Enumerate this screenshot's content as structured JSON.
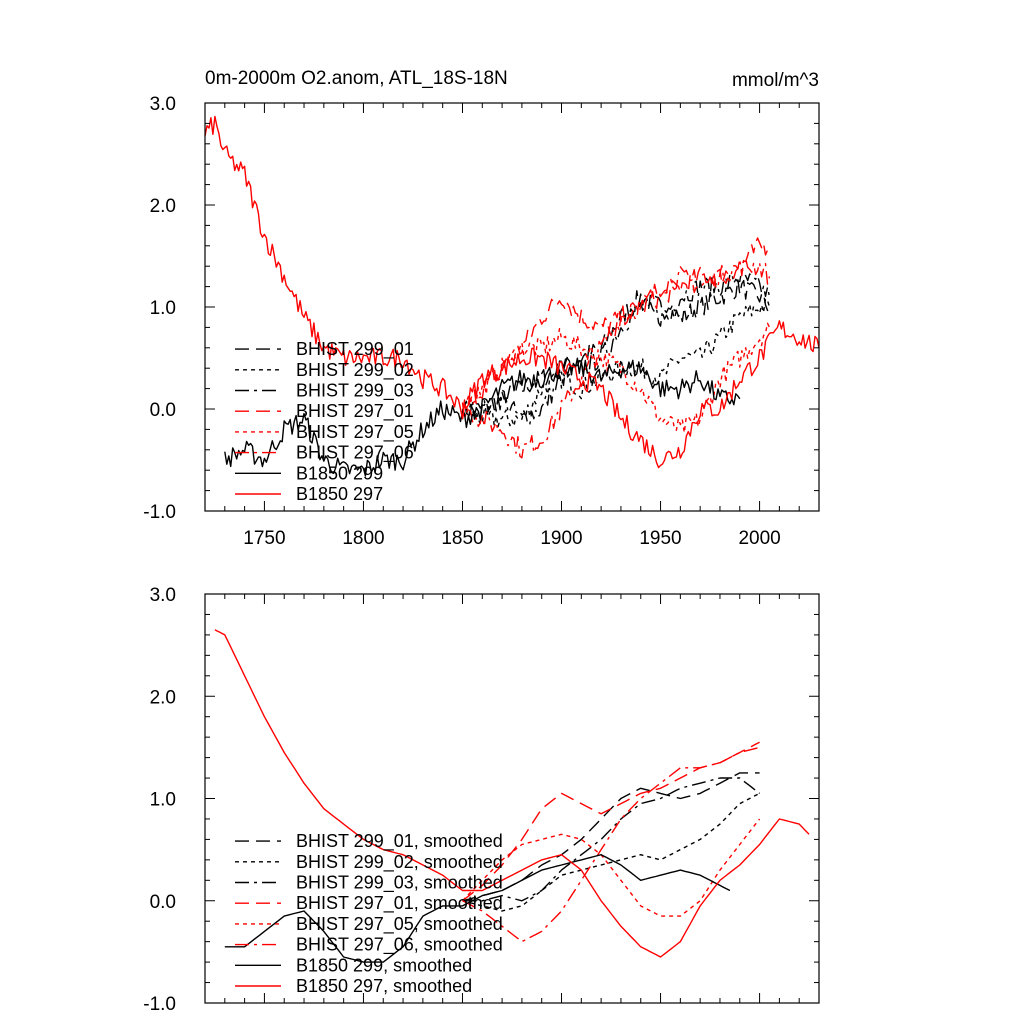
{
  "figure": {
    "title_left": "0m-2000m O2.anom, ATL_18S-18N",
    "title_right": "mmol/m^3"
  },
  "legend_styles": {
    "BHIST 299_01": {
      "color": "#000000",
      "dash": "14,7"
    },
    "BHIST 299_02": {
      "color": "#000000",
      "dash": "4,4"
    },
    "BHIST 299_03": {
      "color": "#000000",
      "dash": "14,5,3,5"
    },
    "BHIST 297_01": {
      "color": "#ff0000",
      "dash": "14,7"
    },
    "BHIST 297_05": {
      "color": "#ff0000",
      "dash": "4,4"
    },
    "BHIST 297_06": {
      "color": "#ff0000",
      "dash": "14,5,3,5"
    },
    "B1850 299": {
      "color": "#000000",
      "dash": ""
    },
    "B1850 297": {
      "color": "#ff0000",
      "dash": ""
    }
  },
  "chart_data": [
    {
      "type": "line",
      "panel": "top",
      "xlim": [
        1720,
        2030
      ],
      "ylim": [
        -1.0,
        3.0
      ],
      "xticks": [
        "1750",
        "1800",
        "1850",
        "1900",
        "1950",
        "2000"
      ],
      "yticks": [
        "-1.0",
        "0.0",
        "1.0",
        "2.0",
        "3.0"
      ],
      "legend_position": "lower-left",
      "noise": 0.1,
      "series": [
        {
          "name": "BHIST 299_01",
          "style": "BHIST 299_01",
          "x": [
            1850,
            1860,
            1870,
            1880,
            1890,
            1900,
            1910,
            1920,
            1930,
            1940,
            1950,
            1960,
            1970,
            1980,
            1990,
            2000,
            2005
          ],
          "y": [
            0.0,
            0.0,
            0.1,
            0.2,
            0.3,
            0.4,
            0.5,
            0.6,
            0.9,
            1.1,
            1.0,
            0.9,
            1.0,
            1.1,
            1.2,
            1.1,
            1.0
          ]
        },
        {
          "name": "BHIST 299_02",
          "style": "BHIST 299_02",
          "x": [
            1850,
            1860,
            1870,
            1880,
            1890,
            1900,
            1910,
            1920,
            1930,
            1940,
            1950,
            1960,
            1970,
            1980,
            1990,
            2000,
            2005
          ],
          "y": [
            0.0,
            -0.1,
            -0.1,
            -0.1,
            0.2,
            0.3,
            0.2,
            0.3,
            0.4,
            0.4,
            0.3,
            0.5,
            0.5,
            0.7,
            0.9,
            1.0,
            1.0
          ]
        },
        {
          "name": "BHIST 299_03",
          "style": "BHIST 299_03",
          "x": [
            1850,
            1860,
            1870,
            1880,
            1890,
            1900,
            1910,
            1920,
            1930,
            1940,
            1950,
            1960,
            1970,
            1980,
            1990,
            2000,
            2005
          ],
          "y": [
            0.0,
            0.0,
            0.1,
            -0.1,
            0.0,
            0.3,
            0.4,
            0.5,
            0.8,
            1.0,
            0.9,
            1.1,
            1.2,
            1.2,
            1.3,
            1.2,
            1.1
          ]
        },
        {
          "name": "BHIST 297_01",
          "style": "BHIST 297_01",
          "x": [
            1850,
            1860,
            1870,
            1880,
            1890,
            1900,
            1910,
            1920,
            1930,
            1940,
            1950,
            1960,
            1970,
            1980,
            1990,
            2000,
            2005
          ],
          "y": [
            0.0,
            0.2,
            0.4,
            0.6,
            0.9,
            1.1,
            0.9,
            0.8,
            0.9,
            1.0,
            1.1,
            1.2,
            1.3,
            1.3,
            1.4,
            1.6,
            1.6
          ]
        },
        {
          "name": "BHIST 297_05",
          "style": "BHIST 297_05",
          "x": [
            1850,
            1860,
            1870,
            1880,
            1890,
            1900,
            1910,
            1920,
            1930,
            1940,
            1950,
            1960,
            1970,
            1980,
            1990,
            2000,
            2005
          ],
          "y": [
            0.0,
            0.2,
            0.4,
            0.6,
            0.6,
            0.7,
            0.6,
            0.5,
            0.4,
            0.2,
            -0.1,
            -0.2,
            -0.1,
            0.3,
            0.5,
            0.7,
            0.8
          ]
        },
        {
          "name": "BHIST 297_06",
          "style": "BHIST 297_06",
          "x": [
            1850,
            1860,
            1870,
            1880,
            1890,
            1900,
            1910,
            1920,
            1930,
            1940,
            1950,
            1960,
            1970,
            1980,
            1990,
            2000,
            2005
          ],
          "y": [
            0.0,
            -0.1,
            -0.2,
            -0.4,
            -0.3,
            0.0,
            0.3,
            0.6,
            0.9,
            1.0,
            1.2,
            1.3,
            1.2,
            1.3,
            1.4,
            1.4,
            1.3
          ]
        },
        {
          "name": "B1850 299",
          "style": "B1850 299",
          "x": [
            1730,
            1740,
            1750,
            1760,
            1770,
            1780,
            1790,
            1800,
            1810,
            1820,
            1830,
            1840,
            1850,
            1860,
            1870,
            1880,
            1890,
            1900,
            1910,
            1920,
            1930,
            1940,
            1950,
            1960,
            1970,
            1980,
            1990
          ],
          "y": [
            -0.5,
            -0.4,
            -0.5,
            -0.2,
            -0.1,
            -0.5,
            -0.6,
            -0.6,
            -0.5,
            -0.5,
            -0.2,
            0.0,
            -0.1,
            0.0,
            0.2,
            0.3,
            0.3,
            0.4,
            0.4,
            0.3,
            0.4,
            0.4,
            0.2,
            0.2,
            0.3,
            0.1,
            0.1
          ]
        },
        {
          "name": "B1850 297",
          "style": "B1850 297",
          "x": [
            1720,
            1725,
            1730,
            1740,
            1750,
            1760,
            1770,
            1780,
            1790,
            1800,
            1810,
            1820,
            1830,
            1840,
            1850,
            1860,
            1870,
            1880,
            1890,
            1900,
            1910,
            1920,
            1930,
            1940,
            1950,
            1960,
            1970,
            1980,
            1990,
            2000,
            2010,
            2020,
            2030
          ],
          "y": [
            2.7,
            2.8,
            2.5,
            2.3,
            1.7,
            1.3,
            0.9,
            0.6,
            0.5,
            0.5,
            0.5,
            0.5,
            0.3,
            0.2,
            0.0,
            0.3,
            0.4,
            0.5,
            0.5,
            0.4,
            0.3,
            0.2,
            -0.1,
            -0.3,
            -0.5,
            -0.4,
            0.0,
            0.0,
            0.3,
            0.5,
            0.8,
            0.7,
            0.6
          ]
        }
      ]
    },
    {
      "type": "line",
      "panel": "bottom",
      "xlim": [
        1720,
        2030
      ],
      "ylim": [
        -1.0,
        3.0
      ],
      "xticks": [],
      "yticks": [
        "-1.0",
        "0.0",
        "1.0",
        "2.0",
        "3.0"
      ],
      "legend_position": "lower-left",
      "noise": 0,
      "series": [
        {
          "name": "BHIST 299_01, smoothed",
          "style": "BHIST 299_01",
          "x": [
            1850,
            1860,
            1870,
            1880,
            1890,
            1900,
            1910,
            1920,
            1930,
            1940,
            1950,
            1960,
            1970,
            1980,
            1990,
            2000
          ],
          "y": [
            0.0,
            0.05,
            0.1,
            0.2,
            0.35,
            0.45,
            0.6,
            0.8,
            1.0,
            1.1,
            1.05,
            1.0,
            1.05,
            1.15,
            1.25,
            1.25
          ]
        },
        {
          "name": "BHIST 299_02, smoothed",
          "style": "BHIST 299_02",
          "x": [
            1850,
            1860,
            1870,
            1880,
            1890,
            1900,
            1910,
            1920,
            1930,
            1940,
            1950,
            1960,
            1970,
            1980,
            1990,
            2000
          ],
          "y": [
            0.0,
            -0.05,
            -0.1,
            -0.05,
            0.1,
            0.25,
            0.3,
            0.35,
            0.4,
            0.45,
            0.4,
            0.5,
            0.6,
            0.75,
            0.95,
            1.05
          ]
        },
        {
          "name": "BHIST 299_03, smoothed",
          "style": "BHIST 299_03",
          "x": [
            1850,
            1860,
            1870,
            1880,
            1890,
            1900,
            1910,
            1920,
            1930,
            1940,
            1950,
            1960,
            1970,
            1980,
            1990,
            2000
          ],
          "y": [
            0.0,
            0.0,
            0.05,
            0.0,
            0.1,
            0.3,
            0.45,
            0.6,
            0.8,
            0.95,
            1.0,
            1.1,
            1.15,
            1.2,
            1.2,
            1.05
          ]
        },
        {
          "name": "BHIST 297_01, smoothed",
          "style": "BHIST 297_01",
          "x": [
            1850,
            1860,
            1870,
            1880,
            1890,
            1900,
            1910,
            1920,
            1930,
            1940,
            1950,
            1960,
            1970,
            1980,
            1990,
            2000
          ],
          "y": [
            0.0,
            0.15,
            0.35,
            0.6,
            0.9,
            1.05,
            0.95,
            0.85,
            0.95,
            1.05,
            1.1,
            1.2,
            1.3,
            1.35,
            1.45,
            1.55
          ]
        },
        {
          "name": "BHIST 297_05, smoothed",
          "style": "BHIST 297_05",
          "x": [
            1850,
            1860,
            1870,
            1880,
            1890,
            1900,
            1910,
            1920,
            1930,
            1940,
            1950,
            1960,
            1970,
            1980,
            1990,
            2000
          ],
          "y": [
            0.0,
            0.2,
            0.4,
            0.55,
            0.6,
            0.65,
            0.6,
            0.45,
            0.2,
            -0.05,
            -0.15,
            -0.15,
            0.0,
            0.3,
            0.55,
            0.8
          ]
        },
        {
          "name": "BHIST 297_06, smoothed",
          "style": "BHIST 297_06",
          "x": [
            1850,
            1860,
            1870,
            1880,
            1890,
            1900,
            1910,
            1920,
            1930,
            1940,
            1950,
            1960,
            1970,
            1980,
            1990,
            2000
          ],
          "y": [
            0.0,
            -0.1,
            -0.25,
            -0.4,
            -0.3,
            -0.1,
            0.2,
            0.5,
            0.8,
            1.0,
            1.15,
            1.3,
            1.3,
            1.35,
            1.45,
            1.5
          ]
        },
        {
          "name": "B1850 299, smoothed",
          "style": "B1850 299",
          "x": [
            1730,
            1740,
            1750,
            1760,
            1770,
            1780,
            1790,
            1800,
            1810,
            1820,
            1830,
            1840,
            1850,
            1860,
            1870,
            1880,
            1890,
            1900,
            1910,
            1920,
            1930,
            1940,
            1950,
            1960,
            1970,
            1980,
            1985
          ],
          "y": [
            -0.45,
            -0.45,
            -0.3,
            -0.15,
            -0.1,
            -0.3,
            -0.55,
            -0.6,
            -0.6,
            -0.45,
            -0.15,
            -0.05,
            -0.05,
            0.05,
            0.1,
            0.2,
            0.3,
            0.35,
            0.4,
            0.45,
            0.35,
            0.2,
            0.25,
            0.3,
            0.25,
            0.15,
            0.1
          ]
        },
        {
          "name": "B1850 297, smoothed",
          "style": "B1850 297",
          "x": [
            1725,
            1730,
            1740,
            1750,
            1760,
            1770,
            1780,
            1790,
            1800,
            1810,
            1820,
            1830,
            1840,
            1850,
            1860,
            1870,
            1880,
            1890,
            1900,
            1910,
            1920,
            1930,
            1940,
            1950,
            1960,
            1970,
            1980,
            1990,
            2000,
            2010,
            2020,
            2025
          ],
          "y": [
            2.65,
            2.6,
            2.2,
            1.8,
            1.45,
            1.15,
            0.9,
            0.75,
            0.6,
            0.5,
            0.45,
            0.35,
            0.25,
            0.1,
            0.1,
            0.2,
            0.3,
            0.4,
            0.45,
            0.3,
            0.0,
            -0.25,
            -0.45,
            -0.55,
            -0.4,
            -0.05,
            0.2,
            0.35,
            0.55,
            0.8,
            0.75,
            0.65
          ]
        }
      ]
    }
  ]
}
